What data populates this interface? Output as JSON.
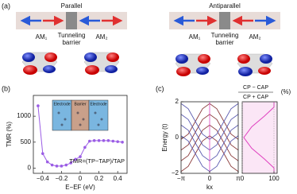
{
  "figure": {
    "panel_labels": [
      "(a)",
      "(b)",
      "(c)"
    ],
    "schematic": {
      "parallel": {
        "title": "Parallel",
        "left": "AM₁",
        "barrier_line1": "Tunneling",
        "barrier_line2": "barrier",
        "right": "AM₂"
      },
      "antiparallel": {
        "title": "Antiparallel",
        "left": "AM₁",
        "barrier_line1": "Tunneling",
        "barrier_line2": "barrier",
        "right": "AM₂"
      }
    }
  },
  "chart_data": [
    {
      "type": "line",
      "ylabel": "TMR (%)",
      "xlabel": "E−EF (eV)",
      "color": "#9b5de5",
      "x": [
        -0.45,
        -0.4,
        -0.35,
        -0.3,
        -0.25,
        -0.2,
        -0.15,
        -0.1,
        -0.05,
        0,
        0.05,
        0.1,
        0.15,
        0.2,
        0.25,
        0.3,
        0.35,
        0.4,
        0.45
      ],
      "values": [
        1200,
        280,
        120,
        60,
        40,
        40,
        60,
        100,
        170,
        220,
        400,
        520,
        530,
        530,
        530,
        530,
        520,
        510,
        500
      ],
      "xlim": [
        -0.5,
        0.5
      ],
      "ylim": [
        -100,
        1400
      ],
      "xticks": [
        {
          "value": -0.4,
          "label": "−0.4"
        },
        {
          "value": -0.2,
          "label": "−0.2"
        },
        0,
        0.2,
        0.4
      ],
      "yticks": [
        0,
        500,
        1000
      ],
      "inset_labels": [
        "Electrode",
        "Barrier",
        "Electrode"
      ],
      "annotation": "TMR=(TP−TAP)/TAP"
    },
    {
      "type": "bands",
      "ylabel": "Energy (t)",
      "xlabel": "kx",
      "x": [
        -3.1416,
        -2.3562,
        -1.5708,
        -0.7854,
        0,
        0.7854,
        1.5708,
        2.3562,
        3.1416
      ],
      "series": [
        {
          "color": "#8a3b3b",
          "values": [
            -0.1,
            0.19,
            0.9,
            1.61,
            1.9,
            1.61,
            0.9,
            0.19,
            -0.1
          ]
        },
        {
          "color": "#8a3b3b",
          "values": [
            -0.7,
            -0.41,
            0.3,
            1.01,
            1.3,
            1.01,
            0.3,
            -0.41,
            -0.7
          ]
        },
        {
          "color": "#8a3b3b",
          "values": [
            -1.3,
            -1.01,
            -0.3,
            0.41,
            0.7,
            0.41,
            -0.3,
            -1.01,
            -1.3
          ]
        },
        {
          "color": "#8a3b3b",
          "values": [
            -1.9,
            -1.61,
            -0.9,
            -0.19,
            0.1,
            -0.19,
            -0.9,
            -1.61,
            -1.9
          ]
        },
        {
          "color": "#5b5bb0",
          "values": [
            1.9,
            1.61,
            0.9,
            0.19,
            -0.1,
            0.19,
            0.9,
            1.61,
            1.9
          ]
        },
        {
          "color": "#5b5bb0",
          "values": [
            1.3,
            1.01,
            0.3,
            -0.41,
            -0.7,
            -0.41,
            0.3,
            1.01,
            1.3
          ]
        },
        {
          "color": "#5b5bb0",
          "values": [
            0.7,
            0.41,
            -0.3,
            -1.01,
            -1.3,
            -1.01,
            -0.3,
            0.41,
            0.7
          ]
        },
        {
          "color": "#5b5bb0",
          "values": [
            0.1,
            -0.19,
            -0.9,
            -1.61,
            -1.9,
            -1.61,
            -0.9,
            -0.19,
            0.1
          ]
        }
      ],
      "xlim": [
        -3.1416,
        3.1416
      ],
      "ylim": [
        -2,
        2
      ],
      "xticks": [
        {
          "value": -3.1416,
          "label": "−π"
        },
        0,
        {
          "value": 3.1416,
          "label": "π"
        }
      ],
      "yticks": [
        {
          "value": -2,
          "label": "−2"
        },
        0,
        2
      ]
    },
    {
      "type": "profile",
      "title_numerator": "CP − CAP",
      "title_denominator": "CP + CAP",
      "title_unit": "(%)",
      "color": "#e040c0",
      "energy": [
        -2,
        -1.7,
        -1.2,
        -0.6,
        0,
        0.6,
        1.2,
        1.7,
        2
      ],
      "values": [
        100,
        100,
        70,
        30,
        5,
        30,
        70,
        100,
        100
      ],
      "xlim": [
        0,
        110
      ],
      "ylim": [
        -2,
        2
      ],
      "xticks": [
        0,
        100
      ]
    }
  ]
}
